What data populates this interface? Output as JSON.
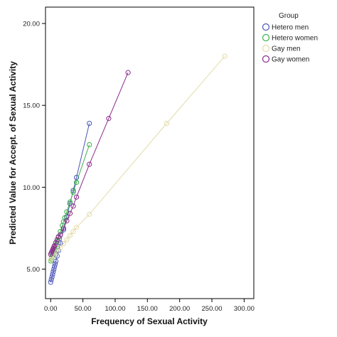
{
  "chart_data": {
    "type": "scatter",
    "xlabel": "Frequency  of Sexual Activity",
    "ylabel": "Predicted Value for Accept. of Sexual Activity",
    "xlim": [
      -8,
      315
    ],
    "ylim": [
      3.2,
      21.0
    ],
    "xticks": [
      "0.00",
      "50.00",
      "100.00",
      "150.00",
      "200.00",
      "250.00",
      "300.00"
    ],
    "xtick_values": [
      0,
      50,
      100,
      150,
      200,
      250,
      300
    ],
    "yticks": [
      "5.00",
      "10.00",
      "15.00",
      "20.00"
    ],
    "ytick_values": [
      5,
      10,
      15,
      20
    ],
    "grid": false,
    "legend": {
      "title": "Group",
      "placement": "right"
    },
    "series": [
      {
        "name": "Hetero men",
        "color": "#4a55b8",
        "x": [
          0,
          1,
          2,
          3,
          4,
          5,
          6,
          7,
          8,
          10,
          12,
          15,
          20,
          25,
          30,
          35,
          40,
          60
        ],
        "y": [
          4.2,
          4.36,
          4.52,
          4.68,
          4.84,
          5.0,
          5.16,
          5.32,
          5.48,
          5.8,
          6.12,
          6.6,
          7.4,
          8.2,
          9.0,
          9.8,
          10.6,
          13.9
        ]
      },
      {
        "name": "Hetero women",
        "color": "#3ab04a",
        "x": [
          0,
          1,
          2,
          3,
          4,
          5,
          6,
          8,
          10,
          12,
          15,
          18,
          20,
          22,
          25,
          30,
          35,
          40,
          60
        ],
        "y": [
          5.5,
          5.62,
          5.74,
          5.86,
          5.98,
          6.1,
          6.22,
          6.46,
          6.7,
          6.94,
          7.3,
          7.66,
          7.9,
          8.14,
          8.5,
          9.1,
          9.7,
          10.3,
          12.6
        ]
      },
      {
        "name": "Gay men",
        "color": "#e3dcaa",
        "x": [
          0,
          2,
          5,
          10,
          15,
          20,
          25,
          30,
          35,
          40,
          60,
          180,
          270
        ],
        "y": [
          5.55,
          5.65,
          5.8,
          6.05,
          6.3,
          6.55,
          6.8,
          7.05,
          7.3,
          7.55,
          8.35,
          13.9,
          18.0
        ]
      },
      {
        "name": "Gay women",
        "color": "#8a2a8a",
        "x": [
          0,
          1,
          2,
          3,
          4,
          5,
          6,
          8,
          10,
          12,
          15,
          20,
          25,
          30,
          35,
          40,
          60,
          90,
          120
        ],
        "y": [
          5.9,
          5.99,
          6.08,
          6.17,
          6.26,
          6.35,
          6.44,
          6.62,
          6.8,
          6.98,
          7.1,
          7.5,
          7.95,
          8.4,
          8.85,
          9.4,
          11.4,
          14.2,
          17.0
        ]
      }
    ]
  }
}
